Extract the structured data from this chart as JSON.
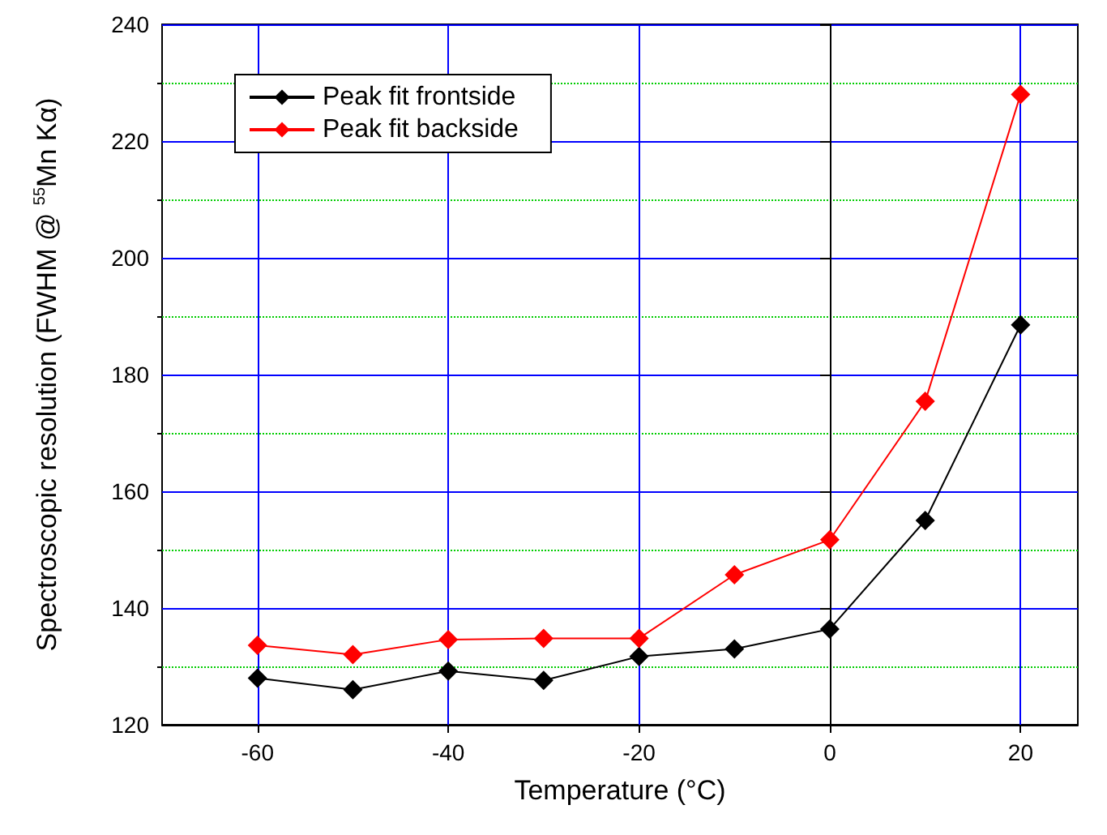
{
  "chart_data": {
    "type": "line",
    "xlabel": "Temperature (°C)",
    "ylabel": "Spectroscopic resolution (FWHM @ $^{55}$Mn Kα)",
    "x": [
      -60,
      -50,
      -40,
      -30,
      -20,
      -10,
      0,
      10,
      20
    ],
    "series": [
      {
        "name": "Peak fit frontside",
        "color": "#000000",
        "values": [
          128,
          126,
          129.2,
          127.6,
          131.7,
          133,
          136.4,
          155,
          188.5
        ]
      },
      {
        "name": "Peak fit backside",
        "color": "#ff0000",
        "values": [
          133.6,
          132,
          134.6,
          134.8,
          134.8,
          145.7,
          151.7,
          175.4,
          228
        ]
      }
    ],
    "xlim": [
      -70,
      26
    ],
    "xticks": [
      -60,
      -40,
      -20,
      0,
      20
    ],
    "ylim": [
      120,
      240
    ],
    "yticks": [
      120,
      {
        "value": 130,
        "label": null
      },
      140,
      {
        "value": 150,
        "label": null
      },
      160,
      {
        "value": 170,
        "label": null
      },
      180,
      {
        "value": 190,
        "label": null
      },
      200,
      {
        "value": 210,
        "label": null
      },
      220,
      {
        "value": 230,
        "label": null
      },
      240
    ],
    "grid": true,
    "legend": "top left",
    "marker": "diamond",
    "line_style": "solid"
  }
}
